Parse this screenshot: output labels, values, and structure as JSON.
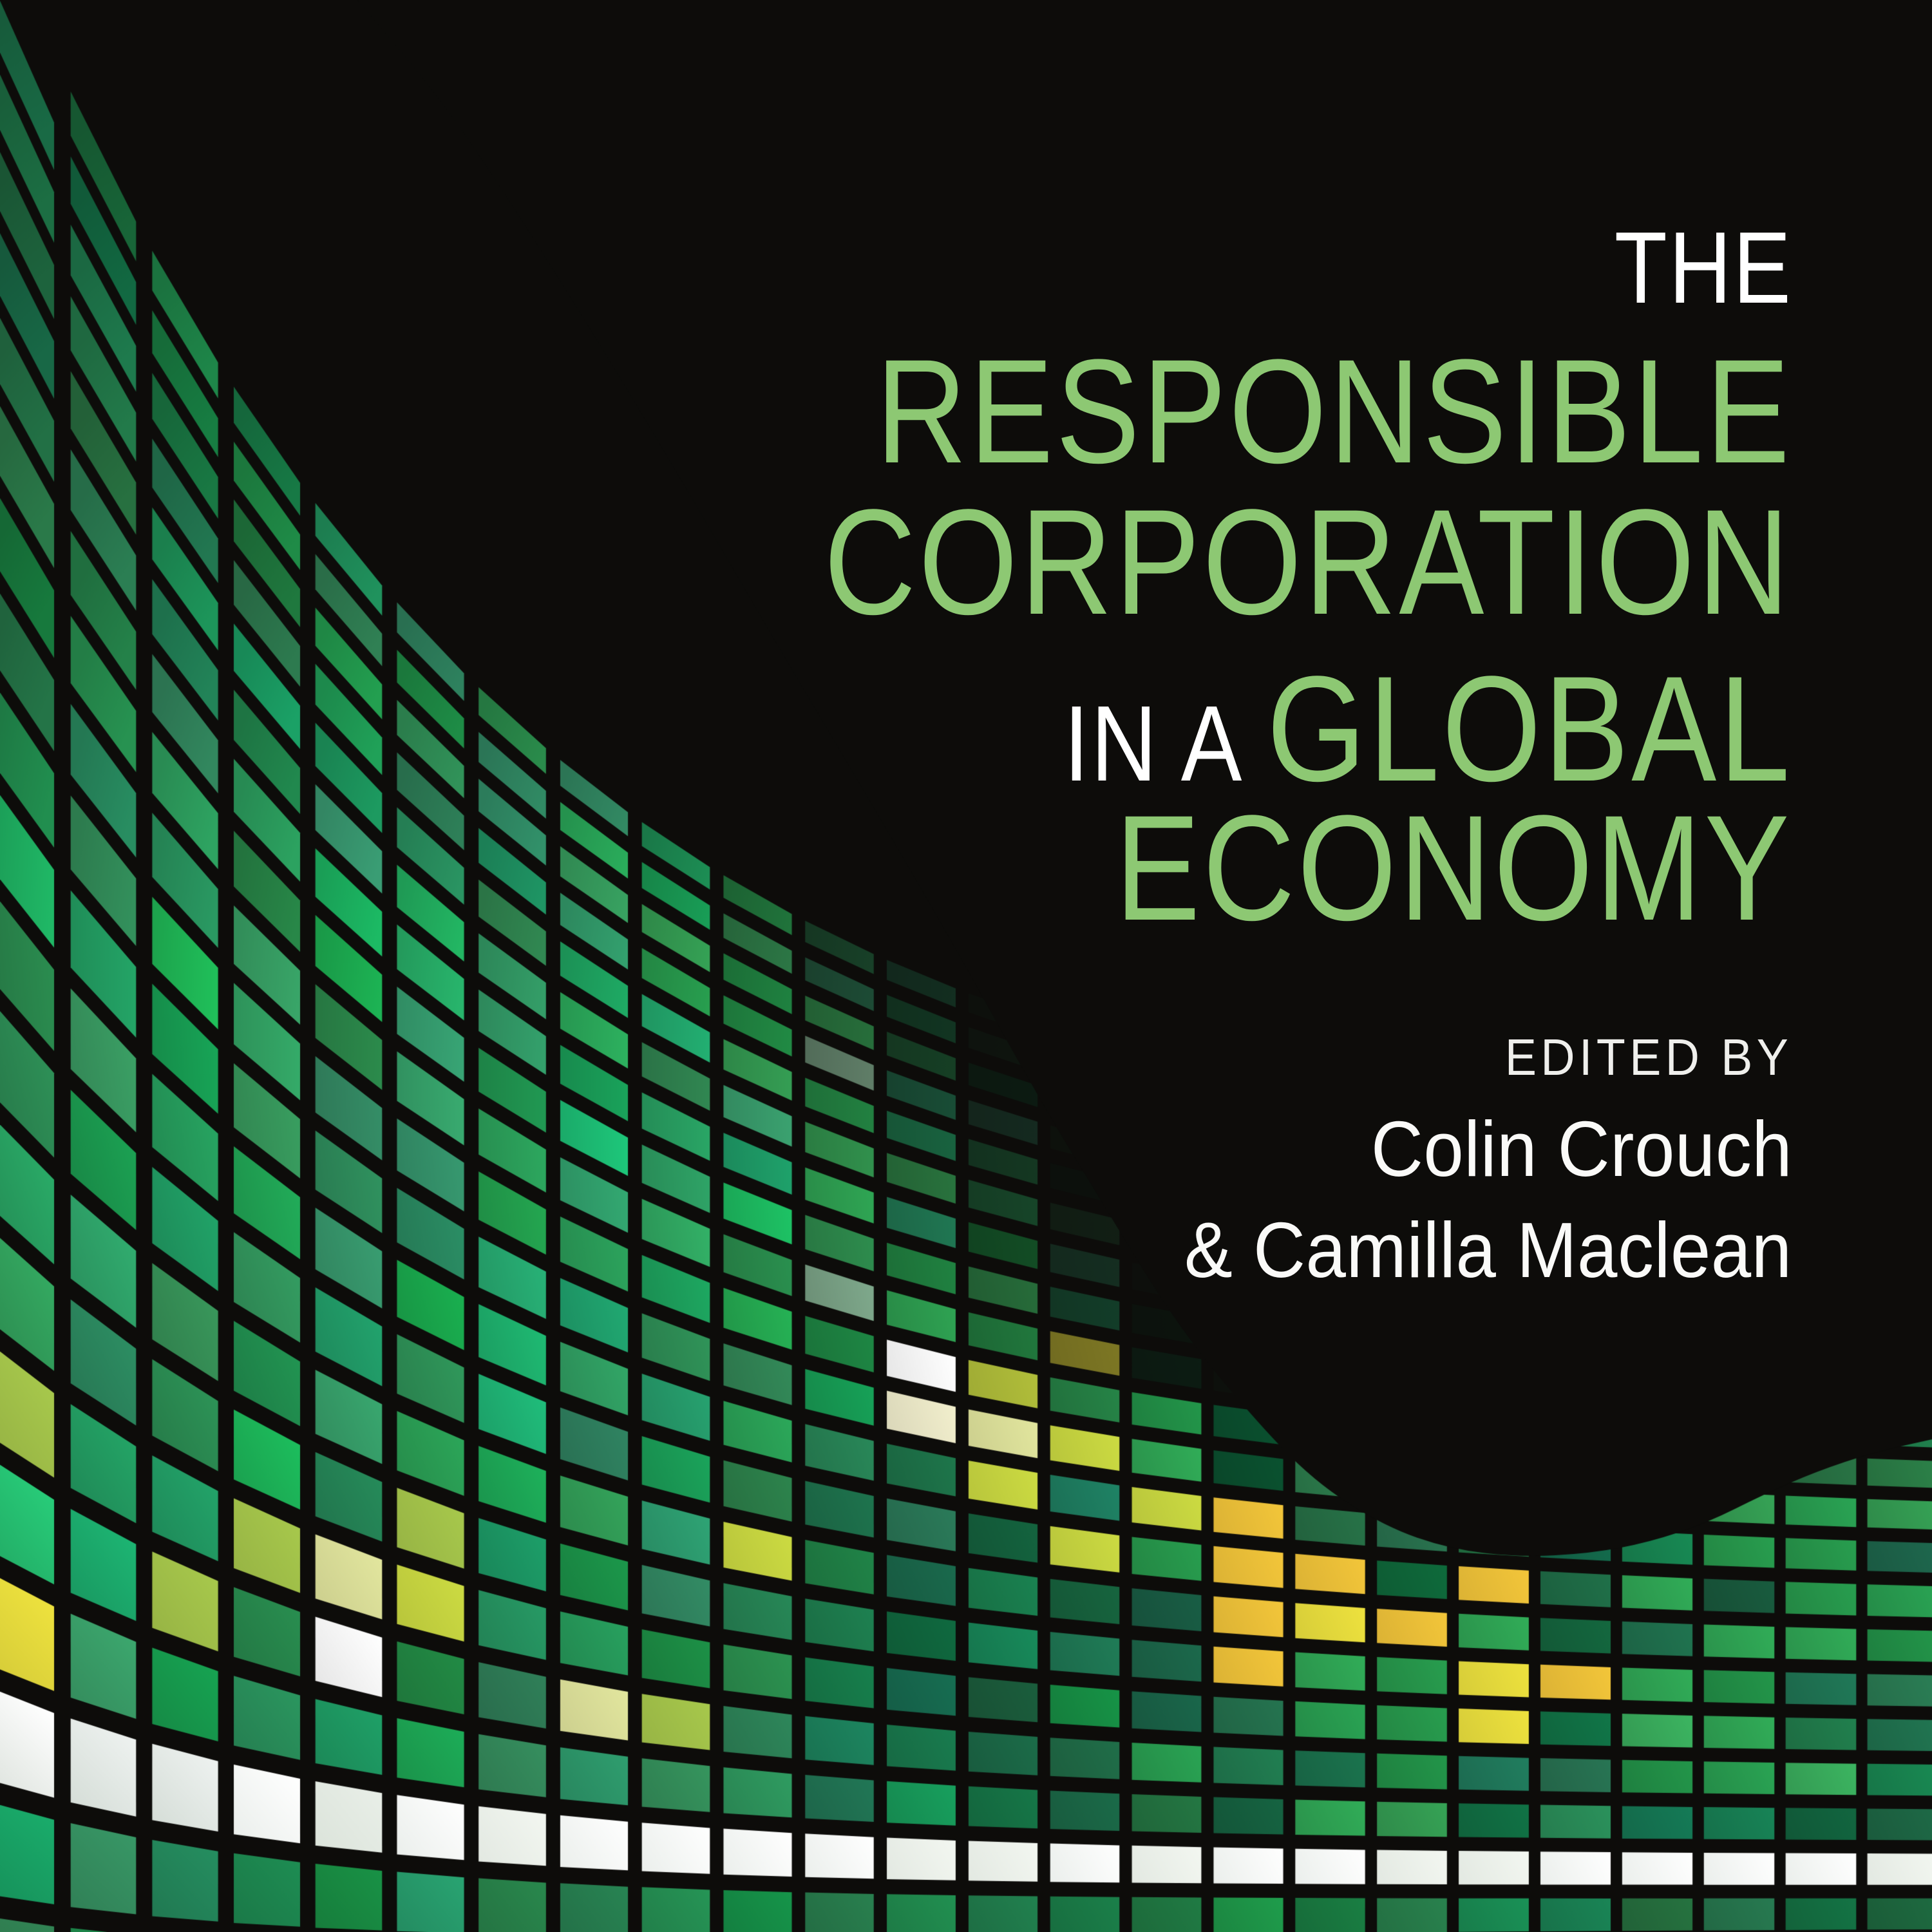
{
  "cover": {
    "title": {
      "line1": "THE",
      "line2": "RESPONSIBLE",
      "line3": "CORPORATION",
      "line4_small": "IN A",
      "line4_large": "GLOBAL",
      "line5": "ECONOMY"
    },
    "edited_by_label": "EDITED BY",
    "editors": [
      "Colin Crouch",
      "& Camilla Maclean"
    ],
    "colors": {
      "title_green": "#8dc873",
      "title_white": "#ffffff",
      "author_white": "#fafaf8",
      "background_black": "#0c0b09"
    },
    "mosaic_palette": {
      "whites": [
        "#ffffff",
        "#ffffff",
        "#ffffff",
        "#f3f7f1",
        "#e9efe8"
      ],
      "white_tint_left": "#eef2f0",
      "highlight_gold": "#f3c63a",
      "highlight_yellow": "#eee23e",
      "highlight_lime": "#ccdb42",
      "highlight_pale": "#e2e69e",
      "highlight_cream": "#f2efcd",
      "highlight_white": "#ffffff",
      "highlight_yellow_green": "#a7c84c",
      "kelly_greens": [
        "#2aa454",
        "#31ad58",
        "#289e4f",
        "#3cb561",
        "#23964a",
        "#36a356"
      ],
      "dark_rim_greens": [
        "#0e6b3c",
        "#0c5f36",
        "#0a5230"
      ],
      "sage_accent": "#7fa98c",
      "teal_accent": "#1a9e68",
      "grout_black": "#0d0c0a"
    }
  }
}
